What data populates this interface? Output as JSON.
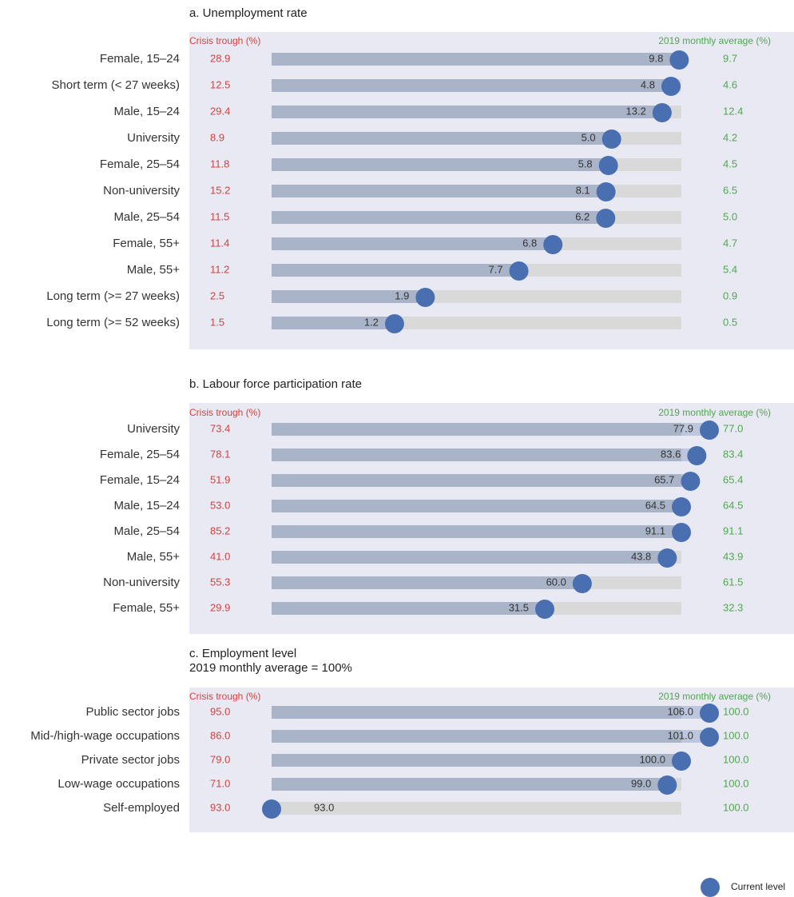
{
  "chart_data": [
    {
      "type": "dumbbell-progress",
      "title": "a. Unemployment rate",
      "categories": [
        "Female, 15–24",
        "Short term (< 27 weeks)",
        "Male, 15–24",
        "University",
        "Female, 25–54",
        "Non-university",
        "Male,  25–54",
        "Female, 55+",
        "Male,  55+",
        "Long term (>= 27 weeks)",
        "Long term (>= 52 weeks)"
      ],
      "series": [
        {
          "name": "Crisis trough (%)",
          "color": "#d0433f",
          "values": [
            28.9,
            12.5,
            29.4,
            8.9,
            11.8,
            15.2,
            11.5,
            11.4,
            11.2,
            2.5,
            1.5
          ]
        },
        {
          "name": "Current level",
          "color": "#4a6fb0",
          "values": [
            9.8,
            4.8,
            13.2,
            5.0,
            5.8,
            8.1,
            6.2,
            6.8,
            7.7,
            1.9,
            1.2
          ],
          "value_labels": [
            "9.8",
            "4.8",
            "13.2",
            "5.0",
            "5.8",
            "8.1",
            "6.2",
            "6.8",
            "7.7",
            "1.9",
            "1.2"
          ]
        },
        {
          "name": "2019 monthly average (%)",
          "color": "#4fa84f",
          "values": [
            9.7,
            4.6,
            12.4,
            4.2,
            4.5,
            6.5,
            5.0,
            4.7,
            5.4,
            0.9,
            0.5
          ],
          "value_labels": [
            "9.7",
            "4.6",
            "12.4",
            "4.2",
            "4.5",
            "6.5",
            "5.0",
            "4.7",
            "5.4",
            "0.9",
            "0.5"
          ]
        }
      ]
    },
    {
      "type": "dumbbell-progress",
      "title": "b. Labour force participation rate",
      "categories": [
        "University",
        "Female, 25–54",
        "Female, 15–24",
        "Male, 15–24",
        "Male, 25–54",
        "Male, 55+",
        "Non-university",
        "Female, 55+"
      ],
      "series": [
        {
          "name": "Crisis trough (%)",
          "color": "#d0433f",
          "values": [
            73.4,
            78.1,
            51.9,
            53.0,
            85.2,
            41.0,
            55.3,
            29.9
          ],
          "value_labels": [
            "73.4",
            "78.1",
            "51.9",
            "53.0",
            "85.2",
            "41.0",
            "55.3",
            "29.9"
          ]
        },
        {
          "color": "#4a6fb0",
          "values": [
            77.9,
            83.6,
            65.7,
            64.5,
            91.1,
            43.8,
            60.0,
            31.5
          ],
          "value_labels": [
            "77.9",
            "83.6",
            "65.7",
            "64.5",
            "91.1",
            "43.8",
            "60.0",
            "31.5"
          ]
        },
        {
          "name": "2019 monthly average (%)",
          "color": "#4fa84f",
          "values": [
            77.0,
            83.4,
            65.4,
            64.5,
            91.1,
            43.9,
            61.5,
            32.3
          ],
          "value_labels": [
            "77.0",
            "83.4",
            "65.4",
            "64.5",
            "91.1",
            "43.9",
            "61.5",
            "32.3"
          ]
        }
      ]
    },
    {
      "type": "dumbbell-progress",
      "title": "c. Employment level",
      "subtitle": "2019 monthly average = 100%",
      "categories": [
        "Public sector jobs",
        "Mid-/high-wage occupations",
        "Private sector jobs",
        "Low-wage occupations",
        "Self-employed"
      ],
      "series": [
        {
          "name": "Crisis trough (%)",
          "color": "#d0433f",
          "values": [
            95.0,
            86.0,
            79.0,
            71.0,
            93.0
          ],
          "value_labels": [
            "95.0",
            "86.0",
            "79.0",
            "71.0",
            "93.0"
          ]
        },
        {
          "color": "#4a6fb0",
          "values": [
            106.0,
            101.0,
            100.0,
            99.0,
            93.0
          ],
          "value_labels": [
            "106.0",
            "101.0",
            "100.0",
            "99.0",
            "93.0"
          ]
        },
        {
          "name": "2019 monthly average (%)",
          "color": "#4fa84f",
          "values": [
            100.0,
            100.0,
            100.0,
            100.0,
            100.0
          ],
          "value_labels": [
            "100.0",
            "100.0",
            "100.0",
            "100.0",
            "100.0"
          ]
        }
      ]
    }
  ]
}
